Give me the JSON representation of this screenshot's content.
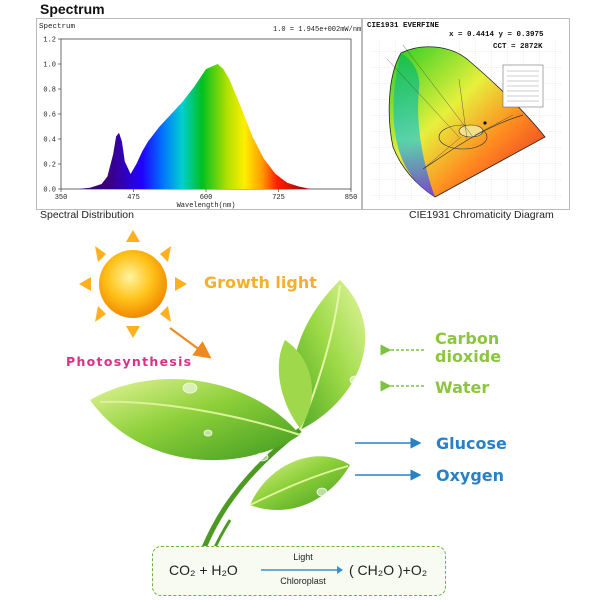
{
  "header": {
    "title": "Spectrum"
  },
  "spectrum": {
    "inner_title": "Spectrum",
    "note": "1.0 = 1.945e+002mW/nm",
    "caption": "Spectral Distribution"
  },
  "cie": {
    "header": "CIE1931   EVERFINE",
    "coords": "x = 0.4414 y = 0.3975",
    "cct": "CCT = 2872K",
    "caption": "CIE1931 Chromaticity Diagram"
  },
  "diagram": {
    "growth_light": "Growth light",
    "photosynthesis": "Photosynthesis",
    "carbon_dioxide_line1": "Carbon",
    "carbon_dioxide_line2": "dioxide",
    "water": "Water",
    "glucose": "Glucose",
    "oxygen": "Oxygen"
  },
  "equation": {
    "left": "CO₂ + H₂O",
    "over_arrow": "Light",
    "under_arrow": "Chloroplast",
    "right": "( CH₂O )+O₂"
  },
  "chart_data": {
    "type": "line",
    "title": "Spectrum",
    "xlabel": "Wavelength(nm)",
    "ylabel": "",
    "xlim": [
      350,
      850
    ],
    "ylim": [
      0,
      1.2
    ],
    "x_ticks": [
      350,
      475,
      600,
      725,
      850
    ],
    "y_ticks": [
      0.0,
      0.2,
      0.4,
      0.6,
      0.8,
      1.0,
      1.2
    ],
    "series": [
      {
        "x": [
          380,
          400,
          420,
          430,
          440,
          445,
          450,
          455,
          460,
          470,
          480,
          490,
          500,
          520,
          540,
          560,
          580,
          600,
          620,
          630,
          640,
          660,
          680,
          700,
          720,
          740,
          760,
          780
        ],
        "values": [
          0.0,
          0.01,
          0.04,
          0.1,
          0.28,
          0.42,
          0.45,
          0.38,
          0.22,
          0.12,
          0.2,
          0.3,
          0.38,
          0.5,
          0.6,
          0.7,
          0.82,
          0.96,
          1.0,
          0.96,
          0.88,
          0.66,
          0.42,
          0.24,
          0.12,
          0.05,
          0.02,
          0.0
        ]
      }
    ]
  }
}
